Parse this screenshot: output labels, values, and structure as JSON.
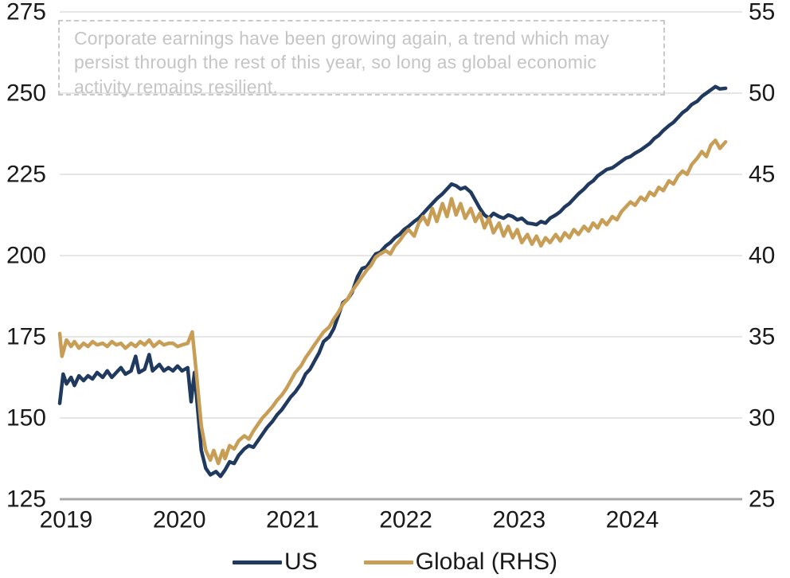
{
  "annotation": {
    "text": "Corporate earnings have been growing again, a trend which may persist through the rest of this year, so long as global economic activity remains resilient."
  },
  "legend": {
    "us_label": "US",
    "global_label": "Global (RHS)"
  },
  "colors": {
    "us": "#20395f",
    "global": "#c89d55",
    "gridline": "#dedede",
    "axis_line": "#a8a8a8",
    "tick_text": "#1a1a1a",
    "annotation_text": "#c5c5c5",
    "annotation_border": "#c9c9c9"
  },
  "chart_data": {
    "type": "line",
    "title": "",
    "xlabel": "",
    "ylabel_left": "",
    "ylabel_right": "",
    "grid": true,
    "legend_position": "bottom",
    "x_ticks": [
      "2019",
      "2020",
      "2021",
      "2022",
      "2023",
      "2024"
    ],
    "x_range": [
      2019.0,
      2024.95
    ],
    "y_left": {
      "ticks": [
        275,
        250,
        225,
        200,
        175,
        150,
        125
      ],
      "range": [
        125,
        275
      ]
    },
    "y_right": {
      "ticks": [
        55,
        50,
        45,
        40,
        35,
        30,
        25
      ],
      "range": [
        25,
        55
      ]
    },
    "series": [
      {
        "name": "US",
        "axis": "left",
        "points": [
          [
            2019.0,
            154.5
          ],
          [
            2019.03,
            163.5
          ],
          [
            2019.06,
            160.5
          ],
          [
            2019.1,
            162.5
          ],
          [
            2019.13,
            160.0
          ],
          [
            2019.17,
            163.0
          ],
          [
            2019.21,
            161.5
          ],
          [
            2019.25,
            163.0
          ],
          [
            2019.29,
            162.0
          ],
          [
            2019.33,
            164.0
          ],
          [
            2019.38,
            162.5
          ],
          [
            2019.42,
            164.5
          ],
          [
            2019.46,
            162.5
          ],
          [
            2019.5,
            164.0
          ],
          [
            2019.54,
            165.5
          ],
          [
            2019.58,
            163.5
          ],
          [
            2019.63,
            164.5
          ],
          [
            2019.67,
            169.0
          ],
          [
            2019.7,
            164.0
          ],
          [
            2019.75,
            165.0
          ],
          [
            2019.79,
            169.5
          ],
          [
            2019.82,
            164.5
          ],
          [
            2019.88,
            166.5
          ],
          [
            2019.92,
            164.5
          ],
          [
            2019.96,
            165.5
          ],
          [
            2020.0,
            164.5
          ],
          [
            2020.04,
            166.0
          ],
          [
            2020.08,
            164.5
          ],
          [
            2020.13,
            165.5
          ],
          [
            2020.16,
            155.0
          ],
          [
            2020.19,
            164.0
          ],
          [
            2020.22,
            152.0
          ],
          [
            2020.25,
            140.0
          ],
          [
            2020.29,
            134.5
          ],
          [
            2020.33,
            132.5
          ],
          [
            2020.38,
            133.5
          ],
          [
            2020.42,
            132.0
          ],
          [
            2020.46,
            134.0
          ],
          [
            2020.5,
            136.5
          ],
          [
            2020.54,
            136.0
          ],
          [
            2020.58,
            138.5
          ],
          [
            2020.63,
            140.5
          ],
          [
            2020.67,
            141.5
          ],
          [
            2020.71,
            141.0
          ],
          [
            2020.75,
            143.0
          ],
          [
            2020.79,
            145.0
          ],
          [
            2020.83,
            147.0
          ],
          [
            2020.88,
            149.0
          ],
          [
            2020.92,
            151.0
          ],
          [
            2020.96,
            152.5
          ],
          [
            2021.0,
            154.5
          ],
          [
            2021.04,
            156.5
          ],
          [
            2021.08,
            158.0
          ],
          [
            2021.13,
            160.5
          ],
          [
            2021.17,
            163.5
          ],
          [
            2021.21,
            165.0
          ],
          [
            2021.25,
            167.5
          ],
          [
            2021.29,
            170.0
          ],
          [
            2021.33,
            173.5
          ],
          [
            2021.38,
            175.0
          ],
          [
            2021.42,
            177.5
          ],
          [
            2021.46,
            181.5
          ],
          [
            2021.5,
            185.5
          ],
          [
            2021.54,
            186.5
          ],
          [
            2021.58,
            188.5
          ],
          [
            2021.63,
            193.5
          ],
          [
            2021.67,
            196.0
          ],
          [
            2021.71,
            196.5
          ],
          [
            2021.75,
            198.5
          ],
          [
            2021.79,
            200.5
          ],
          [
            2021.83,
            201.0
          ],
          [
            2021.88,
            203.0
          ],
          [
            2021.92,
            204.0
          ],
          [
            2021.96,
            205.5
          ],
          [
            2022.0,
            206.5
          ],
          [
            2022.04,
            208.0
          ],
          [
            2022.08,
            209.0
          ],
          [
            2022.13,
            210.5
          ],
          [
            2022.17,
            211.5
          ],
          [
            2022.21,
            213.0
          ],
          [
            2022.25,
            214.5
          ],
          [
            2022.29,
            216.0
          ],
          [
            2022.33,
            217.5
          ],
          [
            2022.38,
            219.0
          ],
          [
            2022.42,
            220.5
          ],
          [
            2022.46,
            222.0
          ],
          [
            2022.5,
            221.5
          ],
          [
            2022.54,
            220.5
          ],
          [
            2022.58,
            221.0
          ],
          [
            2022.63,
            219.5
          ],
          [
            2022.67,
            217.0
          ],
          [
            2022.71,
            214.5
          ],
          [
            2022.75,
            212.5
          ],
          [
            2022.79,
            211.5
          ],
          [
            2022.83,
            213.0
          ],
          [
            2022.88,
            212.0
          ],
          [
            2022.92,
            211.5
          ],
          [
            2022.96,
            212.5
          ],
          [
            2023.0,
            212.0
          ],
          [
            2023.04,
            211.0
          ],
          [
            2023.08,
            211.5
          ],
          [
            2023.13,
            210.0
          ],
          [
            2023.17,
            209.8
          ],
          [
            2023.21,
            209.5
          ],
          [
            2023.25,
            210.5
          ],
          [
            2023.29,
            210.0
          ],
          [
            2023.33,
            211.5
          ],
          [
            2023.38,
            212.5
          ],
          [
            2023.42,
            213.5
          ],
          [
            2023.46,
            215.0
          ],
          [
            2023.5,
            216.0
          ],
          [
            2023.54,
            217.5
          ],
          [
            2023.58,
            219.0
          ],
          [
            2023.63,
            220.5
          ],
          [
            2023.67,
            222.0
          ],
          [
            2023.71,
            223.0
          ],
          [
            2023.75,
            224.5
          ],
          [
            2023.79,
            225.5
          ],
          [
            2023.83,
            226.5
          ],
          [
            2023.88,
            227.0
          ],
          [
            2023.92,
            228.0
          ],
          [
            2023.96,
            229.0
          ],
          [
            2024.0,
            230.0
          ],
          [
            2024.04,
            230.5
          ],
          [
            2024.08,
            231.5
          ],
          [
            2024.13,
            232.5
          ],
          [
            2024.17,
            233.5
          ],
          [
            2024.21,
            234.5
          ],
          [
            2024.25,
            236.0
          ],
          [
            2024.29,
            237.0
          ],
          [
            2024.33,
            238.5
          ],
          [
            2024.38,
            240.0
          ],
          [
            2024.42,
            241.0
          ],
          [
            2024.46,
            242.5
          ],
          [
            2024.5,
            244.0
          ],
          [
            2024.54,
            245.0
          ],
          [
            2024.58,
            246.5
          ],
          [
            2024.63,
            247.5
          ],
          [
            2024.67,
            249.0
          ],
          [
            2024.71,
            250.0
          ],
          [
            2024.75,
            251.0
          ],
          [
            2024.79,
            252.0
          ],
          [
            2024.83,
            251.3
          ],
          [
            2024.88,
            251.5
          ]
        ]
      },
      {
        "name": "Global (RHS)",
        "axis": "right",
        "points": [
          [
            2019.0,
            35.2
          ],
          [
            2019.02,
            33.8
          ],
          [
            2019.06,
            34.8
          ],
          [
            2019.1,
            34.4
          ],
          [
            2019.13,
            34.7
          ],
          [
            2019.17,
            34.3
          ],
          [
            2019.21,
            34.6
          ],
          [
            2019.25,
            34.4
          ],
          [
            2019.29,
            34.7
          ],
          [
            2019.33,
            34.5
          ],
          [
            2019.38,
            34.6
          ],
          [
            2019.42,
            34.4
          ],
          [
            2019.46,
            34.7
          ],
          [
            2019.5,
            34.5
          ],
          [
            2019.54,
            34.6
          ],
          [
            2019.58,
            34.3
          ],
          [
            2019.63,
            34.6
          ],
          [
            2019.67,
            34.4
          ],
          [
            2019.71,
            34.7
          ],
          [
            2019.75,
            34.5
          ],
          [
            2019.79,
            34.8
          ],
          [
            2019.83,
            34.4
          ],
          [
            2019.88,
            34.7
          ],
          [
            2019.92,
            34.5
          ],
          [
            2019.96,
            34.6
          ],
          [
            2020.0,
            34.6
          ],
          [
            2020.04,
            34.4
          ],
          [
            2020.08,
            34.5
          ],
          [
            2020.13,
            34.6
          ],
          [
            2020.17,
            35.3
          ],
          [
            2020.21,
            32.5
          ],
          [
            2020.25,
            29.5
          ],
          [
            2020.29,
            28.0
          ],
          [
            2020.33,
            27.4
          ],
          [
            2020.36,
            28.0
          ],
          [
            2020.4,
            27.2
          ],
          [
            2020.44,
            28.0
          ],
          [
            2020.46,
            27.5
          ],
          [
            2020.5,
            28.3
          ],
          [
            2020.54,
            28.1
          ],
          [
            2020.58,
            28.6
          ],
          [
            2020.63,
            28.9
          ],
          [
            2020.67,
            28.7
          ],
          [
            2020.71,
            29.2
          ],
          [
            2020.75,
            29.6
          ],
          [
            2020.79,
            30.0
          ],
          [
            2020.83,
            30.3
          ],
          [
            2020.88,
            30.7
          ],
          [
            2020.92,
            31.1
          ],
          [
            2020.96,
            31.4
          ],
          [
            2021.0,
            31.8
          ],
          [
            2021.04,
            32.3
          ],
          [
            2021.08,
            32.8
          ],
          [
            2021.13,
            33.2
          ],
          [
            2021.17,
            33.7
          ],
          [
            2021.21,
            34.1
          ],
          [
            2021.25,
            34.5
          ],
          [
            2021.29,
            34.9
          ],
          [
            2021.33,
            35.3
          ],
          [
            2021.38,
            35.6
          ],
          [
            2021.42,
            36.1
          ],
          [
            2021.46,
            36.5
          ],
          [
            2021.5,
            37.0
          ],
          [
            2021.54,
            37.3
          ],
          [
            2021.58,
            37.8
          ],
          [
            2021.63,
            38.3
          ],
          [
            2021.67,
            38.7
          ],
          [
            2021.71,
            39.1
          ],
          [
            2021.75,
            39.4
          ],
          [
            2021.79,
            39.9
          ],
          [
            2021.83,
            40.1
          ],
          [
            2021.88,
            40.3
          ],
          [
            2021.92,
            40.1
          ],
          [
            2021.96,
            40.6
          ],
          [
            2022.0,
            40.9
          ],
          [
            2022.04,
            41.3
          ],
          [
            2022.08,
            41.6
          ],
          [
            2022.13,
            41.2
          ],
          [
            2022.17,
            42.0
          ],
          [
            2022.21,
            42.4
          ],
          [
            2022.25,
            41.9
          ],
          [
            2022.29,
            42.9
          ],
          [
            2022.33,
            42.1
          ],
          [
            2022.38,
            43.2
          ],
          [
            2022.42,
            42.4
          ],
          [
            2022.46,
            43.5
          ],
          [
            2022.5,
            42.5
          ],
          [
            2022.54,
            43.2
          ],
          [
            2022.58,
            42.3
          ],
          [
            2022.63,
            42.9
          ],
          [
            2022.67,
            42.1
          ],
          [
            2022.71,
            42.6
          ],
          [
            2022.75,
            41.7
          ],
          [
            2022.79,
            42.3
          ],
          [
            2022.83,
            41.4
          ],
          [
            2022.88,
            42.0
          ],
          [
            2022.92,
            41.2
          ],
          [
            2022.96,
            41.8
          ],
          [
            2023.0,
            41.1
          ],
          [
            2023.04,
            41.6
          ],
          [
            2023.08,
            40.8
          ],
          [
            2023.13,
            41.3
          ],
          [
            2023.17,
            40.7
          ],
          [
            2023.21,
            41.2
          ],
          [
            2023.25,
            40.6
          ],
          [
            2023.29,
            41.1
          ],
          [
            2023.33,
            40.8
          ],
          [
            2023.38,
            41.3
          ],
          [
            2023.42,
            40.9
          ],
          [
            2023.46,
            41.4
          ],
          [
            2023.5,
            41.1
          ],
          [
            2023.54,
            41.6
          ],
          [
            2023.58,
            41.3
          ],
          [
            2023.63,
            41.8
          ],
          [
            2023.67,
            41.5
          ],
          [
            2023.71,
            42.0
          ],
          [
            2023.75,
            41.7
          ],
          [
            2023.79,
            42.2
          ],
          [
            2023.83,
            41.9
          ],
          [
            2023.88,
            42.4
          ],
          [
            2023.92,
            42.2
          ],
          [
            2023.96,
            42.7
          ],
          [
            2024.0,
            43.0
          ],
          [
            2024.04,
            43.3
          ],
          [
            2024.08,
            43.1
          ],
          [
            2024.13,
            43.6
          ],
          [
            2024.17,
            43.4
          ],
          [
            2024.21,
            43.9
          ],
          [
            2024.25,
            43.7
          ],
          [
            2024.29,
            44.2
          ],
          [
            2024.33,
            44.0
          ],
          [
            2024.38,
            44.6
          ],
          [
            2024.42,
            44.4
          ],
          [
            2024.46,
            44.9
          ],
          [
            2024.5,
            45.2
          ],
          [
            2024.54,
            45.0
          ],
          [
            2024.58,
            45.6
          ],
          [
            2024.63,
            46.0
          ],
          [
            2024.67,
            46.4
          ],
          [
            2024.71,
            46.1
          ],
          [
            2024.75,
            46.8
          ],
          [
            2024.79,
            47.1
          ],
          [
            2024.83,
            46.6
          ],
          [
            2024.88,
            47.0
          ]
        ]
      }
    ]
  }
}
